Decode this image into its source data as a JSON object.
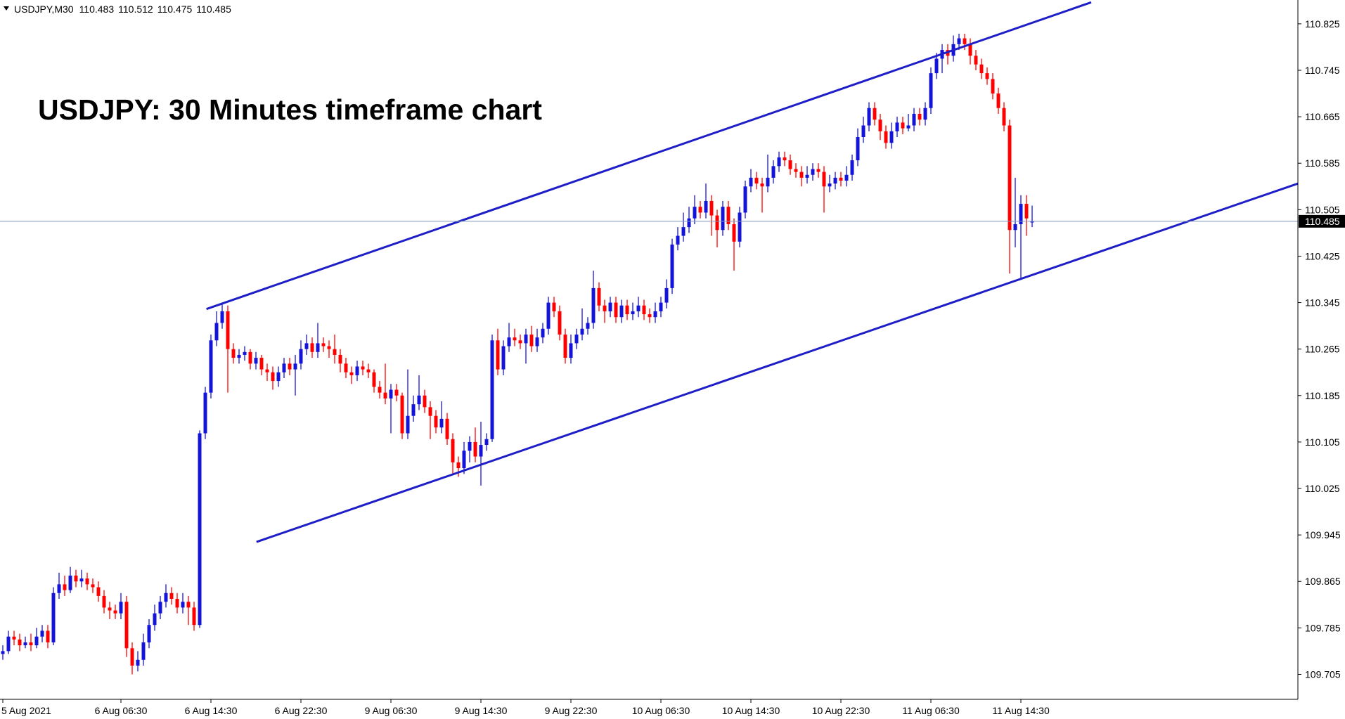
{
  "chart_data": {
    "type": "candlestick",
    "symbol": "USDJPY,M30",
    "title": "USDJPY: 30 Minutes timeframe chart",
    "up_color": "#1414d8",
    "down_color": "#ff0000",
    "price_line_color": "#7f98b8",
    "grid": false,
    "xlim": [
      -0.5,
      230.25
    ],
    "ylim": [
      109.662,
      110.866
    ],
    "yticks": [
      110.825,
      110.745,
      110.665,
      110.585,
      110.505,
      110.425,
      110.345,
      110.265,
      110.185,
      110.105,
      110.025,
      109.945,
      109.865,
      109.785,
      109.705
    ],
    "categories": [
      "5 Aug 2021",
      null,
      null,
      null,
      null,
      null,
      null,
      null,
      null,
      null,
      null,
      null,
      null,
      null,
      null,
      null,
      null,
      null,
      null,
      null,
      null,
      "6 Aug 06:30",
      null,
      null,
      null,
      null,
      null,
      null,
      null,
      null,
      null,
      null,
      null,
      null,
      null,
      null,
      null,
      "6 Aug 14:30",
      null,
      null,
      null,
      null,
      null,
      null,
      null,
      null,
      null,
      null,
      null,
      null,
      null,
      null,
      null,
      "6 Aug 22:30",
      null,
      null,
      null,
      null,
      null,
      null,
      null,
      null,
      null,
      null,
      null,
      null,
      null,
      null,
      null,
      "9 Aug 06:30",
      null,
      null,
      null,
      null,
      null,
      null,
      null,
      null,
      null,
      null,
      null,
      null,
      null,
      null,
      null,
      "9 Aug 14:30",
      null,
      null,
      null,
      null,
      null,
      null,
      null,
      null,
      null,
      null,
      null,
      null,
      null,
      null,
      null,
      "9 Aug 22:30",
      null,
      null,
      null,
      null,
      null,
      null,
      null,
      null,
      null,
      null,
      null,
      null,
      null,
      null,
      null,
      "10 Aug 06:30",
      null,
      null,
      null,
      null,
      null,
      null,
      null,
      null,
      null,
      null,
      null,
      null,
      null,
      null,
      null,
      "10 Aug 14:30",
      null,
      null,
      null,
      null,
      null,
      null,
      null,
      null,
      null,
      null,
      null,
      null,
      null,
      null,
      null,
      "10 Aug 22:30",
      null,
      null,
      null,
      null,
      null,
      null,
      null,
      null,
      null,
      null,
      null,
      null,
      null,
      null,
      null,
      "11 Aug 06:30",
      null,
      null,
      null,
      null,
      null,
      null,
      null,
      null,
      null,
      null,
      null,
      null,
      null,
      null,
      null,
      "11 Aug 14:30",
      null,
      null
    ],
    "open": [
      109.74,
      109.745,
      109.77,
      109.765,
      109.755,
      109.76,
      109.755,
      109.77,
      109.78,
      109.76,
      109.845,
      109.86,
      109.85,
      109.875,
      109.865,
      109.87,
      109.86,
      109.855,
      109.84,
      109.82,
      109.815,
      109.81,
      109.83,
      109.75,
      109.72,
      109.73,
      109.76,
      109.79,
      109.81,
      109.83,
      109.845,
      109.835,
      109.82,
      109.83,
      109.82,
      109.79,
      110.12,
      110.19,
      110.28,
      110.31,
      110.33,
      110.265,
      110.25,
      110.255,
      110.26,
      110.24,
      110.25,
      110.23,
      110.225,
      110.21,
      110.225,
      110.24,
      110.23,
      110.24,
      110.265,
      110.275,
      110.26,
      110.275,
      110.27,
      110.265,
      110.255,
      110.24,
      110.225,
      110.22,
      110.235,
      110.23,
      110.225,
      110.2,
      110.19,
      110.18,
      110.195,
      110.185,
      110.12,
      110.15,
      110.17,
      110.185,
      110.165,
      110.15,
      110.13,
      110.145,
      110.11,
      110.07,
      110.06,
      110.09,
      110.105,
      110.08,
      110.1,
      110.11,
      110.28,
      110.23,
      110.27,
      110.285,
      110.28,
      110.275,
      110.29,
      110.27,
      110.285,
      110.3,
      110.345,
      110.33,
      110.29,
      110.25,
      110.275,
      110.29,
      110.3,
      110.31,
      110.37,
      110.34,
      110.33,
      110.345,
      110.32,
      110.34,
      110.325,
      110.33,
      110.34,
      110.325,
      110.32,
      110.33,
      110.345,
      110.37,
      110.445,
      110.46,
      110.475,
      110.49,
      110.51,
      110.5,
      110.52,
      110.495,
      110.47,
      110.51,
      110.48,
      110.45,
      110.5,
      110.545,
      110.56,
      110.55,
      110.545,
      110.56,
      110.58,
      110.595,
      110.59,
      110.575,
      110.57,
      110.56,
      110.565,
      110.575,
      110.57,
      110.545,
      110.55,
      110.56,
      110.555,
      110.565,
      110.59,
      110.63,
      110.65,
      110.68,
      110.66,
      110.64,
      110.62,
      110.64,
      110.655,
      110.645,
      110.65,
      110.67,
      110.66,
      110.68,
      110.74,
      110.765,
      110.78,
      110.77,
      110.79,
      110.8,
      110.79,
      110.77,
      110.755,
      110.74,
      110.73,
      110.705,
      110.68,
      110.65,
      110.47,
      110.48,
      110.515,
      110.483
    ],
    "high": [
      109.755,
      109.78,
      109.78,
      109.775,
      109.77,
      109.775,
      109.785,
      109.79,
      109.79,
      109.855,
      109.88,
      109.875,
      109.89,
      109.885,
      109.885,
      109.88,
      109.87,
      109.865,
      109.85,
      109.83,
      109.825,
      109.845,
      109.84,
      109.76,
      109.745,
      109.775,
      109.8,
      109.825,
      109.84,
      109.86,
      109.855,
      109.845,
      109.845,
      109.84,
      109.83,
      110.125,
      110.2,
      110.29,
      110.33,
      110.345,
      110.34,
      110.275,
      110.265,
      110.27,
      110.265,
      110.26,
      110.255,
      110.24,
      110.235,
      110.235,
      110.25,
      110.25,
      110.255,
      110.28,
      110.29,
      110.285,
      110.31,
      110.285,
      110.28,
      110.29,
      110.265,
      110.25,
      110.235,
      110.245,
      110.245,
      110.24,
      110.23,
      110.21,
      110.24,
      110.205,
      110.205,
      110.19,
      110.23,
      110.185,
      110.22,
      110.195,
      110.175,
      110.16,
      110.175,
      110.155,
      110.12,
      110.08,
      110.105,
      110.115,
      110.13,
      110.14,
      110.12,
      110.29,
      110.3,
      110.28,
      110.31,
      110.3,
      110.29,
      110.3,
      110.305,
      110.3,
      110.31,
      110.355,
      110.355,
      110.34,
      110.3,
      110.29,
      110.3,
      110.335,
      110.32,
      110.4,
      110.38,
      110.35,
      110.355,
      110.355,
      110.35,
      110.35,
      110.345,
      110.355,
      110.35,
      110.335,
      110.345,
      110.355,
      110.385,
      110.455,
      110.475,
      110.5,
      110.51,
      110.53,
      110.52,
      110.55,
      110.53,
      110.505,
      110.52,
      110.52,
      110.49,
      110.51,
      110.555,
      110.575,
      110.57,
      110.56,
      110.6,
      110.59,
      110.605,
      110.605,
      110.6,
      110.585,
      110.58,
      110.58,
      110.585,
      110.585,
      110.58,
      110.565,
      110.57,
      110.57,
      110.58,
      110.6,
      110.645,
      110.665,
      110.69,
      110.69,
      110.67,
      110.65,
      110.655,
      110.665,
      110.665,
      110.67,
      110.68,
      110.68,
      110.69,
      110.75,
      110.775,
      110.79,
      110.79,
      110.805,
      110.808,
      110.808,
      110.8,
      110.78,
      110.765,
      110.75,
      110.74,
      110.715,
      110.69,
      110.66,
      110.56,
      110.53,
      110.53,
      110.512
    ],
    "low": [
      109.73,
      109.74,
      109.755,
      109.745,
      109.75,
      109.745,
      109.75,
      109.76,
      109.75,
      109.755,
      109.835,
      109.84,
      109.845,
      109.855,
      109.855,
      109.85,
      109.845,
      109.83,
      109.81,
      109.8,
      109.8,
      109.8,
      109.735,
      109.705,
      109.71,
      109.72,
      109.75,
      109.78,
      109.8,
      109.82,
      109.825,
      109.81,
      109.81,
      109.79,
      109.78,
      109.785,
      110.11,
      110.18,
      110.27,
      110.3,
      110.19,
      110.24,
      110.24,
      110.245,
      110.23,
      110.23,
      110.22,
      110.21,
      110.195,
      110.2,
      110.215,
      110.22,
      110.185,
      110.23,
      110.255,
      110.25,
      110.25,
      110.26,
      110.25,
      110.24,
      110.225,
      110.215,
      110.205,
      110.21,
      110.22,
      110.215,
      110.19,
      110.18,
      110.17,
      110.12,
      110.175,
      110.11,
      110.11,
      110.14,
      110.16,
      110.155,
      110.11,
      110.12,
      110.12,
      110.1,
      110.05,
      110.045,
      110.05,
      110.07,
      110.07,
      110.03,
      110.09,
      110.105,
      110.22,
      110.22,
      110.26,
      110.27,
      110.265,
      110.24,
      110.26,
      110.26,
      110.275,
      110.29,
      110.32,
      110.28,
      110.24,
      110.24,
      110.265,
      110.28,
      110.29,
      110.3,
      110.33,
      110.31,
      110.32,
      110.31,
      110.31,
      110.315,
      110.315,
      110.32,
      110.315,
      110.31,
      110.31,
      110.32,
      110.335,
      110.36,
      110.435,
      110.45,
      110.465,
      110.48,
      110.49,
      110.49,
      110.46,
      110.44,
      110.46,
      110.47,
      110.4,
      110.44,
      110.49,
      110.535,
      110.54,
      110.5,
      110.535,
      110.55,
      110.57,
      110.58,
      110.565,
      110.56,
      110.545,
      110.55,
      110.555,
      110.56,
      110.5,
      110.535,
      110.54,
      110.545,
      110.545,
      110.555,
      110.58,
      110.62,
      110.64,
      110.65,
      110.625,
      110.61,
      110.61,
      110.63,
      110.635,
      110.64,
      110.64,
      110.65,
      110.65,
      110.67,
      110.73,
      110.74,
      110.755,
      110.76,
      110.78,
      110.78,
      110.755,
      110.745,
      110.73,
      110.72,
      110.695,
      110.67,
      110.64,
      110.395,
      110.44,
      110.385,
      110.46,
      110.475
    ],
    "close": [
      109.745,
      109.77,
      109.765,
      109.755,
      109.76,
      109.755,
      109.77,
      109.78,
      109.76,
      109.845,
      109.86,
      109.85,
      109.875,
      109.865,
      109.87,
      109.86,
      109.855,
      109.84,
      109.82,
      109.815,
      109.81,
      109.83,
      109.75,
      109.72,
      109.73,
      109.76,
      109.79,
      109.81,
      109.83,
      109.845,
      109.835,
      109.82,
      109.83,
      109.82,
      109.79,
      110.12,
      110.19,
      110.28,
      110.31,
      110.33,
      110.265,
      110.25,
      110.255,
      110.26,
      110.24,
      110.25,
      110.23,
      110.225,
      110.21,
      110.225,
      110.24,
      110.23,
      110.24,
      110.265,
      110.275,
      110.26,
      110.275,
      110.27,
      110.265,
      110.255,
      110.24,
      110.225,
      110.22,
      110.235,
      110.23,
      110.225,
      110.2,
      110.19,
      110.18,
      110.195,
      110.185,
      110.12,
      110.15,
      110.17,
      110.185,
      110.165,
      110.15,
      110.13,
      110.145,
      110.11,
      110.07,
      110.06,
      110.09,
      110.105,
      110.08,
      110.1,
      110.11,
      110.28,
      110.23,
      110.27,
      110.285,
      110.28,
      110.275,
      110.29,
      110.27,
      110.285,
      110.3,
      110.345,
      110.33,
      110.29,
      110.25,
      110.275,
      110.29,
      110.3,
      110.31,
      110.37,
      110.34,
      110.33,
      110.345,
      110.32,
      110.34,
      110.325,
      110.33,
      110.34,
      110.325,
      110.32,
      110.33,
      110.345,
      110.37,
      110.445,
      110.46,
      110.475,
      110.49,
      110.51,
      110.5,
      110.52,
      110.495,
      110.47,
      110.51,
      110.48,
      110.45,
      110.5,
      110.545,
      110.56,
      110.55,
      110.545,
      110.56,
      110.58,
      110.595,
      110.59,
      110.575,
      110.57,
      110.56,
      110.565,
      110.575,
      110.57,
      110.545,
      110.55,
      110.56,
      110.555,
      110.565,
      110.59,
      110.63,
      110.65,
      110.68,
      110.66,
      110.64,
      110.62,
      110.64,
      110.655,
      110.645,
      110.65,
      110.67,
      110.66,
      110.68,
      110.74,
      110.765,
      110.78,
      110.77,
      110.79,
      110.8,
      110.79,
      110.77,
      110.755,
      110.74,
      110.73,
      110.705,
      110.68,
      110.65,
      110.47,
      110.48,
      110.515,
      110.49,
      110.485
    ],
    "trendlines": [
      {
        "color": "#1e1ec8",
        "x": [
          36.2,
          193.5
        ],
        "y": [
          110.334,
          110.862
        ]
      },
      {
        "color": "#1e1ec8",
        "x": [
          45.1,
          230.25
        ],
        "y": [
          109.933,
          110.55
        ]
      }
    ]
  }
}
